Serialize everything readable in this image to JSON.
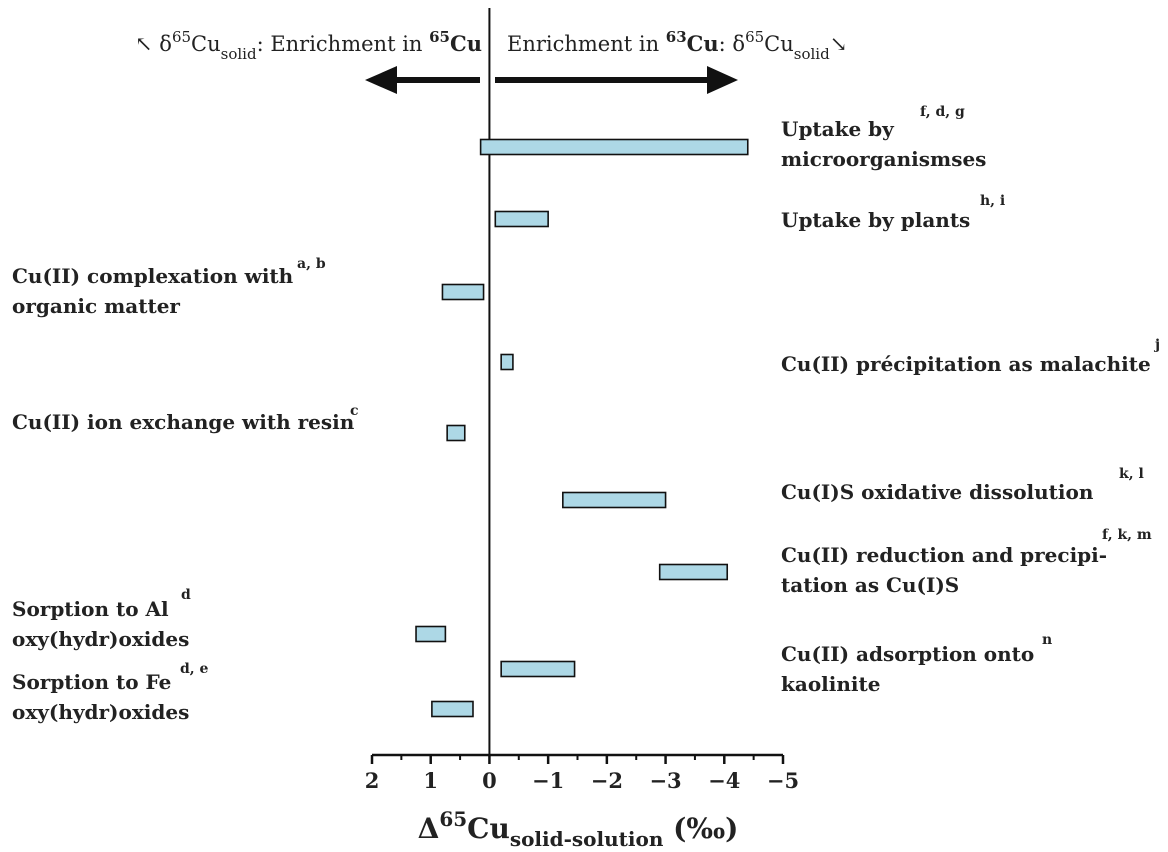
{
  "chart_data": {
    "type": "bar",
    "orientation": "horizontal-range",
    "x_axis": {
      "reversed": true,
      "xlim": [
        2.0,
        -5.0
      ],
      "ticks": [
        2,
        1,
        0,
        -1,
        -2,
        -3,
        -4,
        -5
      ],
      "tick_labels": [
        "2",
        "1",
        "0",
        "−1",
        "−2",
        "−3",
        "−4",
        "−5"
      ],
      "label_main": "Δ",
      "label_sup": "65",
      "label_symbol": "Cu",
      "label_sub": "solid-solution",
      "label_unit": " (‰)"
    },
    "header": {
      "left_arrow_glyph": "↖",
      "left_delta": " δ",
      "left_sup": "65",
      "left_cu": "Cu",
      "left_sub": "solid",
      "left_text": ": Enrichment in ",
      "left_iso_sup": "65",
      "left_iso": "Cu",
      "right_text": "Enrichment in ",
      "right_iso_sup": "63",
      "right_iso": "Cu",
      "right_colon": ": δ",
      "right_sup": "65",
      "right_cu": "Cu",
      "right_sub": "solid",
      "right_arrow_glyph": "↘"
    },
    "bar_color": "#add8e6",
    "processes": [
      {
        "label_lines": [
          "Uptake by",
          "microorganismses"
        ],
        "refs": "f, d, g",
        "side": "right",
        "min": -4.4,
        "max": 0.15
      },
      {
        "label_lines": [
          "Uptake by plants"
        ],
        "refs": "h, i",
        "side": "right",
        "min": -1.0,
        "max": -0.1
      },
      {
        "label_lines": [
          "Cu(II) complexation with",
          "organic matter"
        ],
        "refs": "a, b",
        "side": "left",
        "min": 0.1,
        "max": 0.8
      },
      {
        "label_lines": [
          "Cu(II) précipitation as malachite"
        ],
        "refs": "j",
        "side": "right",
        "min": -0.4,
        "max": -0.2
      },
      {
        "label_lines": [
          "Cu(II) ion exchange with resin"
        ],
        "refs": "c",
        "side": "left",
        "min": 0.42,
        "max": 0.72
      },
      {
        "label_lines": [
          "Cu(I)S oxidative dissolution"
        ],
        "refs": "k, l",
        "side": "right",
        "min": -3.0,
        "max": -1.25
      },
      {
        "label_lines": [
          "Cu(II) reduction and precipi-",
          "tation as Cu(I)S"
        ],
        "refs": "f, k, m",
        "side": "right",
        "min": -4.05,
        "max": -2.9
      },
      {
        "label_lines": [
          "Sorption to Al",
          "oxy(hydr)oxides"
        ],
        "refs": "d",
        "side": "left",
        "min": 0.75,
        "max": 1.25
      },
      {
        "label_lines": [
          "Cu(II) adsorption onto",
          "kaolinite"
        ],
        "refs": "n",
        "side": "right",
        "min": -1.45,
        "max": -0.2
      },
      {
        "label_lines": [
          "Sorption to Fe",
          "oxy(hydr)oxides"
        ],
        "refs": "d, e",
        "side": "left",
        "min": 0.28,
        "max": 0.98
      }
    ]
  }
}
